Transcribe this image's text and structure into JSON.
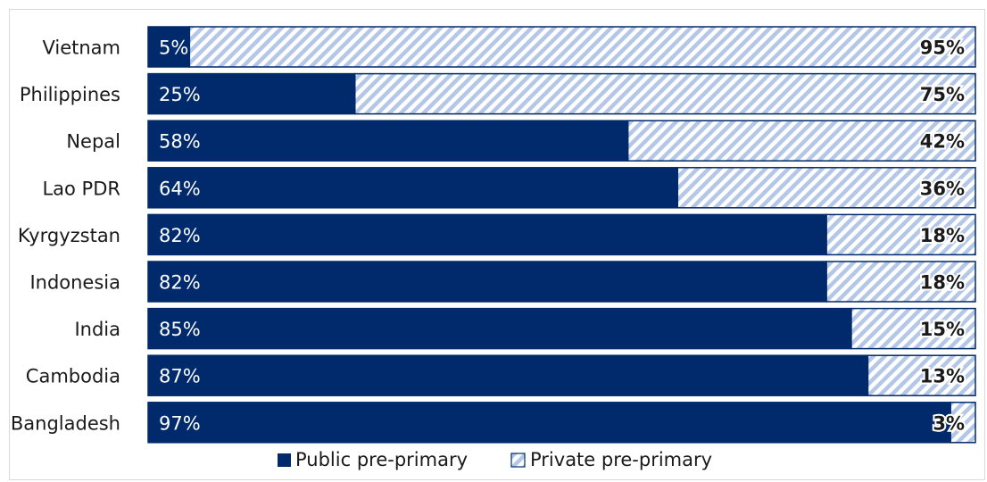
{
  "chart_data": {
    "type": "bar",
    "orientation": "horizontal",
    "stacked": true,
    "categories": [
      "Vietnam",
      "Philippines",
      "Nepal",
      "Lao PDR",
      "Kyrgyzstan",
      "Indonesia",
      "India",
      "Cambodia",
      "Bangladesh"
    ],
    "series": [
      {
        "name": "Public pre-primary",
        "values": [
          5,
          25,
          58,
          64,
          82,
          82,
          85,
          87,
          97
        ],
        "labels": [
          "5%",
          "25%",
          "58%",
          "64%",
          "82%",
          "82%",
          "85%",
          "87%",
          "97%"
        ],
        "color": "#002a6c",
        "pattern": "solid"
      },
      {
        "name": "Private pre-primary",
        "values": [
          95,
          75,
          42,
          36,
          18,
          18,
          15,
          13,
          3
        ],
        "labels": [
          "95%",
          "75%",
          "42%",
          "36%",
          "18%",
          "18%",
          "15%",
          "13%",
          "3%"
        ],
        "color": "#b4c7e7",
        "pattern": "diagonal-hatch"
      }
    ],
    "xlim": [
      0,
      100
    ],
    "grid": false,
    "legend": "bottom"
  }
}
